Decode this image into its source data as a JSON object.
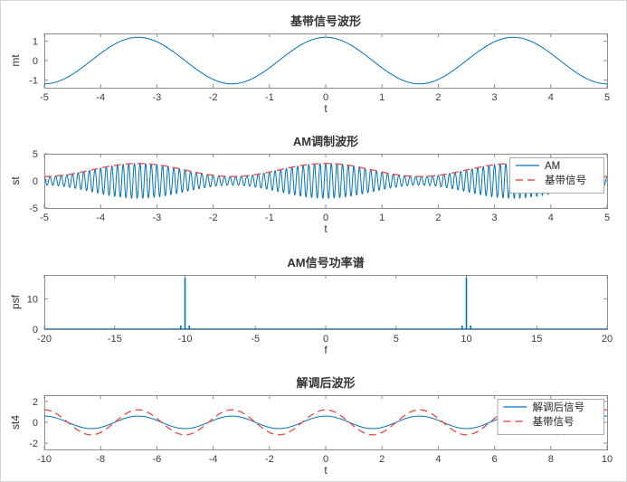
{
  "figure": {
    "background": "#ffffff",
    "palette": {
      "blue": "#0072BD",
      "red": "#E8534E"
    },
    "axis_color": "#8c8c8c",
    "text_color": "#3c3c3c"
  },
  "chart_data": [
    {
      "type": "line",
      "title": "基带信号波形",
      "xlabel": "t",
      "ylabel": "mt",
      "xlim": [
        -5,
        5
      ],
      "ylim": [
        -1.4,
        1.4
      ],
      "xticks": [
        -5,
        -4,
        -3,
        -2,
        -1,
        0,
        1,
        2,
        3,
        4,
        5
      ],
      "yticks": [
        -1,
        0,
        1
      ],
      "grid": false,
      "legend": {
        "visible": false
      },
      "series": [
        {
          "name": "mt",
          "color": "blue",
          "dash": false,
          "signal": {
            "kind": "cos",
            "dc": 0,
            "amp": 1.2,
            "freq": 0.3
          }
        }
      ]
    },
    {
      "type": "line",
      "title": "AM调制波形",
      "xlabel": "t",
      "ylabel": "st",
      "xlim": [
        -5,
        5
      ],
      "ylim": [
        -5,
        5
      ],
      "xticks": [
        -5,
        -4,
        -3,
        -2,
        -1,
        0,
        1,
        2,
        3,
        4,
        5
      ],
      "yticks": [
        -5,
        0,
        5
      ],
      "grid": false,
      "legend": {
        "visible": true,
        "position": "top-right"
      },
      "series": [
        {
          "name": "AM",
          "color": "blue",
          "dash": false,
          "signal": {
            "kind": "am",
            "dc": 2,
            "amp": 1.2,
            "fm": 0.3,
            "fc": 10
          }
        },
        {
          "name": "基带信号",
          "color": "red",
          "dash": true,
          "signal": {
            "kind": "cos",
            "dc": 2,
            "amp": 1.2,
            "freq": 0.3
          }
        }
      ]
    },
    {
      "type": "line",
      "title": "AM信号功率谱",
      "xlabel": "f",
      "ylabel": "psf",
      "xlim": [
        -20,
        20
      ],
      "ylim": [
        0,
        18
      ],
      "xticks": [
        -20,
        -15,
        -10,
        -5,
        0,
        5,
        10,
        15,
        20
      ],
      "yticks": [
        0,
        10
      ],
      "grid": false,
      "legend": {
        "visible": false
      },
      "series": [
        {
          "name": "psf",
          "color": "blue",
          "dash": false,
          "signal": {
            "kind": "impulses",
            "baseline": 0,
            "impulses": [
              [
                -10.3,
                1.2
              ],
              [
                -10,
                17
              ],
              [
                -9.7,
                1.2
              ],
              [
                9.7,
                1.2
              ],
              [
                10,
                17
              ],
              [
                10.3,
                1.2
              ]
            ]
          }
        }
      ]
    },
    {
      "type": "line",
      "title": "解调后波形",
      "xlabel": "t",
      "ylabel": "st4",
      "xlim": [
        -10,
        10
      ],
      "ylim": [
        -2.6,
        2.6
      ],
      "xticks": [
        -10,
        -8,
        -6,
        -4,
        -2,
        0,
        2,
        4,
        6,
        8,
        10
      ],
      "yticks": [
        -2,
        0,
        2
      ],
      "grid": false,
      "legend": {
        "visible": true,
        "position": "top-right"
      },
      "series": [
        {
          "name": "解调后信号",
          "color": "blue",
          "dash": false,
          "signal": {
            "kind": "cos",
            "dc": 0,
            "amp": 0.6,
            "freq": 0.3
          }
        },
        {
          "name": "基带信号",
          "color": "red",
          "dash": true,
          "signal": {
            "kind": "cos",
            "dc": 0,
            "amp": 1.2,
            "freq": 0.3
          }
        }
      ]
    }
  ]
}
